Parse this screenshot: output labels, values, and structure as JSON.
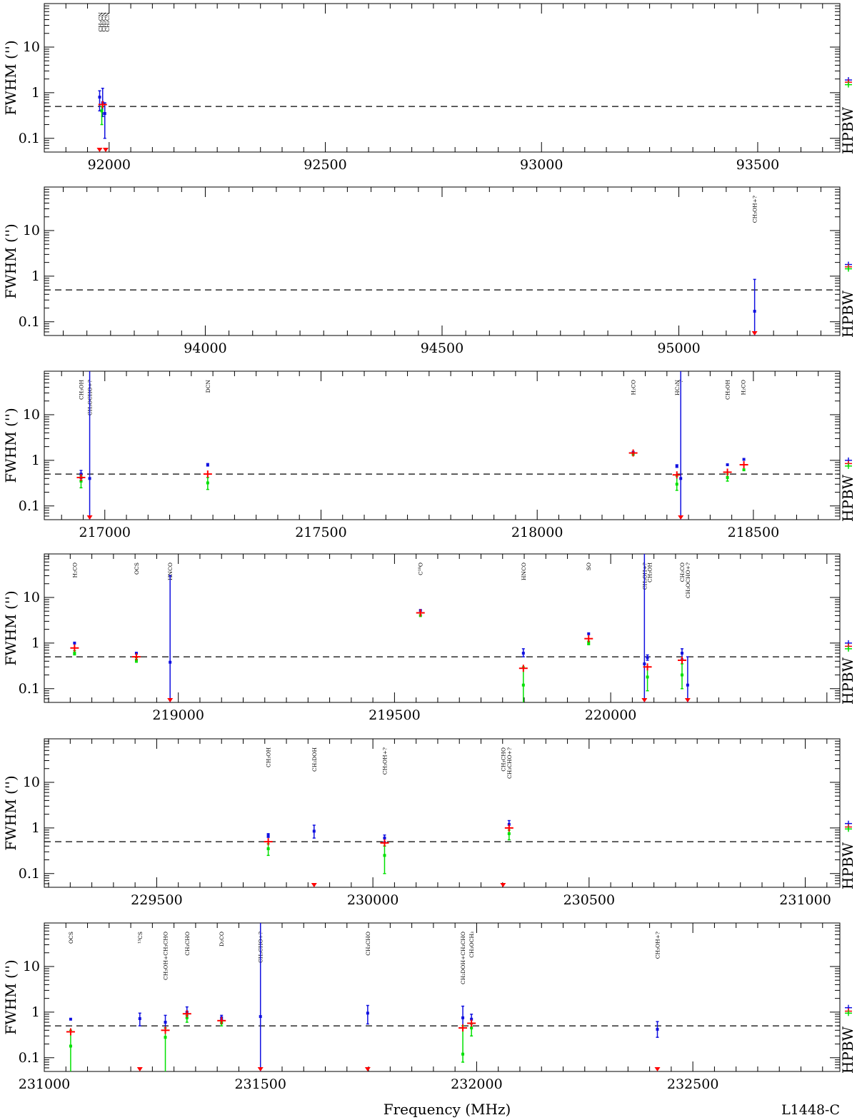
{
  "labels": {
    "ylabel": "FWHM ('')",
    "right_label": "HPBW",
    "xlabel": "Frequency (MHz)",
    "source": "L1448-C"
  },
  "colors": {
    "blue": "#1010e0",
    "red": "#ff0000",
    "green": "#00e000",
    "dashed": "#000000"
  },
  "chart_data": [
    {
      "type": "scatter",
      "xlim": [
        91850,
        93690
      ],
      "ylim": [
        0.05,
        90
      ],
      "yscale": "log",
      "dashed_y": 0.5,
      "xticks": [
        92000,
        92500,
        93000,
        93500
      ],
      "yticks": [
        {
          "v": 0.1,
          "t": "0.1"
        },
        {
          "v": 1,
          "t": "1"
        },
        {
          "v": 10,
          "t": "10"
        }
      ],
      "hpbw": [
        {
          "v": 1.9,
          "c": "blue"
        },
        {
          "v": 1.7,
          "c": "red"
        },
        {
          "v": 1.5,
          "c": "green"
        }
      ],
      "species": [
        {
          "x": 91980,
          "t": "CH₃CN"
        },
        {
          "x": 91987,
          "t": "CH₃CN"
        },
        {
          "x": 91995,
          "t": "CH₃CN"
        }
      ],
      "points": [
        {
          "x": 91978,
          "c": "blue",
          "y": 0.8,
          "lo": 0.4,
          "hi": 1.1
        },
        {
          "x": 91985,
          "c": "blue",
          "y": 0.6,
          "lo": 0.3,
          "hi": 1.25
        },
        {
          "x": 91990,
          "c": "blue",
          "y": 0.35,
          "lo": 0.1,
          "hi": 0.6
        },
        {
          "x": 91983,
          "c": "green",
          "y": 0.4,
          "lo": 0.2,
          "hi": 0.5
        },
        {
          "x": 91985,
          "c": "red",
          "y": 0.55
        },
        {
          "x": 91978,
          "c": "redlim"
        },
        {
          "x": 91992,
          "c": "redlim"
        }
      ]
    },
    {
      "type": "scatter",
      "xlim": [
        93660,
        95340
      ],
      "ylim": [
        0.05,
        90
      ],
      "yscale": "log",
      "dashed_y": 0.5,
      "xticks": [
        94000,
        94500,
        95000
      ],
      "yticks": [
        {
          "v": 0.1,
          "t": "0.1"
        },
        {
          "v": 1,
          "t": "1"
        },
        {
          "v": 10,
          "t": "10"
        }
      ],
      "hpbw": [
        {
          "v": 1.8,
          "c": "blue"
        },
        {
          "v": 1.6,
          "c": "red"
        },
        {
          "v": 1.45,
          "c": "green"
        }
      ],
      "species": [
        {
          "x": 95160,
          "t": "CH₃OH+?"
        }
      ],
      "points": [
        {
          "x": 95160,
          "c": "blue",
          "y": 0.17,
          "lo": 0.05,
          "hi": 0.85
        },
        {
          "x": 95160,
          "c": "redlim"
        }
      ]
    },
    {
      "type": "scatter",
      "xlim": [
        216860,
        218700
      ],
      "ylim": [
        0.05,
        90
      ],
      "yscale": "log",
      "dashed_y": 0.5,
      "xticks": [
        217000,
        217500,
        218000,
        218500
      ],
      "yticks": [
        {
          "v": 0.1,
          "t": "0.1"
        },
        {
          "v": 1,
          "t": "1"
        },
        {
          "v": 10,
          "t": "10"
        }
      ],
      "hpbw": [
        {
          "v": 1.0,
          "c": "blue"
        },
        {
          "v": 0.85,
          "c": "red"
        },
        {
          "v": 0.75,
          "c": "green"
        }
      ],
      "species": [
        {
          "x": 216945,
          "t": "CH₃OH"
        },
        {
          "x": 216965,
          "t": "CH₃OCHO+?"
        },
        {
          "x": 217238,
          "t": "DCN"
        },
        {
          "x": 218222,
          "t": "H₂CO"
        },
        {
          "x": 218323,
          "t": "HC₃N"
        },
        {
          "x": 218332,
          "t": "?"
        },
        {
          "x": 218440,
          "t": "CH₃OH"
        },
        {
          "x": 218476,
          "t": "H₂CO"
        }
      ],
      "points": [
        {
          "x": 216945,
          "c": "blue",
          "y": 0.5,
          "lo": 0.4,
          "hi": 0.6
        },
        {
          "x": 216945,
          "c": "green",
          "y": 0.35,
          "lo": 0.25,
          "hi": 0.45
        },
        {
          "x": 216945,
          "c": "red",
          "y": 0.42
        },
        {
          "x": 216965,
          "c": "blue",
          "y": 0.4,
          "lo": 0.05,
          "hi": 90
        },
        {
          "x": 216965,
          "c": "redlim"
        },
        {
          "x": 217238,
          "c": "blue",
          "y": 0.8,
          "lo": 0.75,
          "hi": 0.85
        },
        {
          "x": 217238,
          "c": "green",
          "y": 0.32,
          "lo": 0.23,
          "hi": 0.42
        },
        {
          "x": 217238,
          "c": "red",
          "y": 0.5
        },
        {
          "x": 218222,
          "c": "blue",
          "y": 1.5
        },
        {
          "x": 218222,
          "c": "green",
          "y": 1.35
        },
        {
          "x": 218222,
          "c": "red",
          "y": 1.45
        },
        {
          "x": 218323,
          "c": "blue",
          "y": 0.75,
          "lo": 0.7,
          "hi": 0.8
        },
        {
          "x": 218323,
          "c": "green",
          "y": 0.3,
          "lo": 0.22,
          "hi": 0.45
        },
        {
          "x": 218323,
          "c": "red",
          "y": 0.48
        },
        {
          "x": 218332,
          "c": "blue",
          "y": 0.4,
          "lo": 0.05,
          "hi": 90
        },
        {
          "x": 218332,
          "c": "redlim"
        },
        {
          "x": 218440,
          "c": "blue",
          "y": 0.8
        },
        {
          "x": 218440,
          "c": "green",
          "y": 0.42,
          "lo": 0.35,
          "hi": 0.5
        },
        {
          "x": 218440,
          "c": "red",
          "y": 0.55
        },
        {
          "x": 218478,
          "c": "blue",
          "y": 1.05
        },
        {
          "x": 218478,
          "c": "green",
          "y": 0.62
        },
        {
          "x": 218478,
          "c": "red",
          "y": 0.8
        }
      ]
    },
    {
      "type": "scatter",
      "xlim": [
        218690,
        220530
      ],
      "ylim": [
        0.05,
        90
      ],
      "yscale": "log",
      "dashed_y": 0.5,
      "xticks": [
        219000,
        219500,
        220000
      ],
      "yticks": [
        {
          "v": 0.1,
          "t": "0.1"
        },
        {
          "v": 1,
          "t": "1"
        },
        {
          "v": 10,
          "t": "10"
        }
      ],
      "hpbw": [
        {
          "v": 1.0,
          "c": "blue"
        },
        {
          "v": 0.85,
          "c": "red"
        },
        {
          "v": 0.75,
          "c": "green"
        }
      ],
      "species": [
        {
          "x": 218760,
          "t": "H₂CO"
        },
        {
          "x": 218903,
          "t": "OCS"
        },
        {
          "x": 218981,
          "t": "HNCO"
        },
        {
          "x": 219560,
          "t": "C¹⁸O"
        },
        {
          "x": 219798,
          "t": "HNCO"
        },
        {
          "x": 219949,
          "t": "SO"
        },
        {
          "x": 220078,
          "t": "CH₃OH+?"
        },
        {
          "x": 220090,
          "t": "CH₃OH"
        },
        {
          "x": 220165,
          "t": "CH₂CO"
        },
        {
          "x": 220178,
          "t": "CH₃OCHO+?"
        }
      ],
      "points": [
        {
          "x": 218760,
          "c": "blue",
          "y": 1.0
        },
        {
          "x": 218760,
          "c": "green",
          "y": 0.6,
          "lo": 0.55,
          "hi": 0.68
        },
        {
          "x": 218760,
          "c": "red",
          "y": 0.78
        },
        {
          "x": 218903,
          "c": "blue",
          "y": 0.6
        },
        {
          "x": 218903,
          "c": "green",
          "y": 0.42,
          "lo": 0.38,
          "hi": 0.48
        },
        {
          "x": 218903,
          "c": "red",
          "y": 0.5
        },
        {
          "x": 218981,
          "c": "blue",
          "y": 0.38,
          "lo": 0.05,
          "hi": 30
        },
        {
          "x": 218981,
          "c": "redlim"
        },
        {
          "x": 219560,
          "c": "blue",
          "y": 5.2
        },
        {
          "x": 219560,
          "c": "green",
          "y": 4.0
        },
        {
          "x": 219560,
          "c": "red",
          "y": 4.6
        },
        {
          "x": 219798,
          "c": "blue",
          "y": 0.6,
          "lo": 0.5,
          "hi": 0.75
        },
        {
          "x": 219798,
          "c": "green",
          "y": 0.12,
          "lo": 0.05,
          "hi": 0.3
        },
        {
          "x": 219798,
          "c": "red",
          "y": 0.28
        },
        {
          "x": 219949,
          "c": "blue",
          "y": 1.6
        },
        {
          "x": 219949,
          "c": "green",
          "y": 1.0,
          "lo": 0.92,
          "hi": 1.1
        },
        {
          "x": 219949,
          "c": "red",
          "y": 1.25
        },
        {
          "x": 220078,
          "c": "blue",
          "y": 0.35,
          "lo": 0.05,
          "hi": 90
        },
        {
          "x": 220078,
          "c": "redlim"
        },
        {
          "x": 220085,
          "c": "blue",
          "y": 0.48,
          "lo": 0.42,
          "hi": 0.55
        },
        {
          "x": 220085,
          "c": "green",
          "y": 0.18,
          "lo": 0.09,
          "hi": 0.3
        },
        {
          "x": 220085,
          "c": "red",
          "y": 0.3
        },
        {
          "x": 220165,
          "c": "blue",
          "y": 0.6,
          "lo": 0.45,
          "hi": 0.75
        },
        {
          "x": 220165,
          "c": "green",
          "y": 0.2,
          "lo": 0.1,
          "hi": 0.35
        },
        {
          "x": 220165,
          "c": "red",
          "y": 0.42
        },
        {
          "x": 220178,
          "c": "blue",
          "y": 0.12,
          "lo": 0.05,
          "hi": 0.5
        },
        {
          "x": 220178,
          "c": "redlim"
        }
      ]
    },
    {
      "type": "scatter",
      "xlim": [
        229240,
        231080
      ],
      "ylim": [
        0.05,
        90
      ],
      "yscale": "log",
      "dashed_y": 0.5,
      "xticks": [
        229500,
        230000,
        230500,
        231000
      ],
      "yticks": [
        {
          "v": 0.1,
          "t": "0.1"
        },
        {
          "v": 1,
          "t": "1"
        },
        {
          "v": 10,
          "t": "10"
        }
      ],
      "hpbw": [
        {
          "v": 1.25,
          "c": "blue"
        },
        {
          "v": 1.05,
          "c": "red"
        },
        {
          "v": 0.95,
          "c": "green"
        }
      ],
      "species": [
        {
          "x": 229758,
          "t": "CH₃OH"
        },
        {
          "x": 229864,
          "t": "CH₂DOH"
        },
        {
          "x": 230027,
          "t": "CH₃OH+?"
        },
        {
          "x": 230301,
          "t": "CH₃CHO"
        },
        {
          "x": 230315,
          "t": "CH₃CHO+?"
        }
      ],
      "points": [
        {
          "x": 229758,
          "c": "blue",
          "y": 0.68,
          "lo": 0.62,
          "hi": 0.75
        },
        {
          "x": 229758,
          "c": "green",
          "y": 0.35,
          "lo": 0.25,
          "hi": 0.45
        },
        {
          "x": 229758,
          "c": "red",
          "y": 0.5
        },
        {
          "x": 229864,
          "c": "blue",
          "y": 0.85,
          "lo": 0.6,
          "hi": 1.15
        },
        {
          "x": 229864,
          "c": "redlim"
        },
        {
          "x": 230027,
          "c": "blue",
          "y": 0.6,
          "lo": 0.5,
          "hi": 0.7
        },
        {
          "x": 230027,
          "c": "green",
          "y": 0.25,
          "lo": 0.1,
          "hi": 0.4
        },
        {
          "x": 230027,
          "c": "red",
          "y": 0.47
        },
        {
          "x": 230301,
          "c": "redlim"
        },
        {
          "x": 230315,
          "c": "blue",
          "y": 1.2,
          "lo": 1.0,
          "hi": 1.45
        },
        {
          "x": 230315,
          "c": "green",
          "y": 0.75,
          "lo": 0.55,
          "hi": 0.9
        },
        {
          "x": 230315,
          "c": "red",
          "y": 1.0
        }
      ]
    },
    {
      "type": "scatter",
      "xlim": [
        231000,
        232840
      ],
      "ylim": [
        0.05,
        90
      ],
      "yscale": "log",
      "dashed_y": 0.5,
      "xticks": [
        231000,
        231500,
        232000,
        232500
      ],
      "xlabel": "Frequency (MHz)",
      "yticks": [
        {
          "v": 0.1,
          "t": "0.1"
        },
        {
          "v": 1,
          "t": "1"
        },
        {
          "v": 10,
          "t": "10"
        }
      ],
      "hpbw": [
        {
          "v": 1.25,
          "c": "blue"
        },
        {
          "v": 1.05,
          "c": "red"
        },
        {
          "v": 0.95,
          "c": "green"
        }
      ],
      "species": [
        {
          "x": 231061,
          "t": "OCS"
        },
        {
          "x": 231221,
          "t": "¹³CS"
        },
        {
          "x": 231280,
          "t": "CH₃OH+CH₃CHO"
        },
        {
          "x": 231330,
          "t": "CH₃CHO"
        },
        {
          "x": 231410,
          "t": "D₂CO"
        },
        {
          "x": 231500,
          "t": "CH₃CHO+?"
        },
        {
          "x": 231748,
          "t": "CH₃CHO"
        },
        {
          "x": 231968,
          "t": "CH₂DOH+CH₃CHO"
        },
        {
          "x": 231988,
          "t": "CH₃OCH₃"
        },
        {
          "x": 232418,
          "t": "CH₃OH+?"
        }
      ],
      "points": [
        {
          "x": 231061,
          "c": "blue",
          "y": 0.7
        },
        {
          "x": 231061,
          "c": "green",
          "y": 0.18,
          "lo": 0.05,
          "hi": 0.4
        },
        {
          "x": 231061,
          "c": "red",
          "y": 0.37
        },
        {
          "x": 231221,
          "c": "blue",
          "y": 0.72,
          "lo": 0.5,
          "hi": 0.95
        },
        {
          "x": 231221,
          "c": "redlim"
        },
        {
          "x": 231280,
          "c": "blue",
          "y": 0.6,
          "lo": 0.45,
          "hi": 0.85
        },
        {
          "x": 231280,
          "c": "green",
          "y": 0.28,
          "lo": 0.05,
          "hi": 0.45
        },
        {
          "x": 231280,
          "c": "red",
          "y": 0.4
        },
        {
          "x": 231330,
          "c": "blue",
          "y": 1.0,
          "lo": 0.85,
          "hi": 1.3
        },
        {
          "x": 231330,
          "c": "green",
          "y": 0.75,
          "lo": 0.6,
          "hi": 0.85
        },
        {
          "x": 231330,
          "c": "red",
          "y": 0.92
        },
        {
          "x": 231410,
          "c": "blue",
          "y": 0.75,
          "lo": 0.68,
          "hi": 0.85
        },
        {
          "x": 231410,
          "c": "green",
          "y": 0.58,
          "lo": 0.5,
          "hi": 0.65
        },
        {
          "x": 231410,
          "c": "red",
          "y": 0.65
        },
        {
          "x": 231500,
          "c": "blue",
          "y": 0.8,
          "lo": 0.05,
          "hi": 90
        },
        {
          "x": 231500,
          "c": "redlim"
        },
        {
          "x": 231748,
          "c": "blue",
          "y": 0.95,
          "lo": 0.55,
          "hi": 1.4
        },
        {
          "x": 231748,
          "c": "redlim"
        },
        {
          "x": 231968,
          "c": "blue",
          "y": 0.75,
          "lo": 0.45,
          "hi": 1.35
        },
        {
          "x": 231968,
          "c": "green",
          "y": 0.12,
          "lo": 0.08,
          "hi": 0.5
        },
        {
          "x": 231968,
          "c": "red",
          "y": 0.45
        },
        {
          "x": 231988,
          "c": "blue",
          "y": 0.7,
          "lo": 0.55,
          "hi": 0.9
        },
        {
          "x": 231988,
          "c": "green",
          "y": 0.45,
          "lo": 0.3,
          "hi": 0.55
        },
        {
          "x": 231988,
          "c": "red",
          "y": 0.57
        },
        {
          "x": 232418,
          "c": "blue",
          "y": 0.42,
          "lo": 0.28,
          "hi": 0.62
        },
        {
          "x": 232418,
          "c": "redlim"
        }
      ]
    }
  ]
}
